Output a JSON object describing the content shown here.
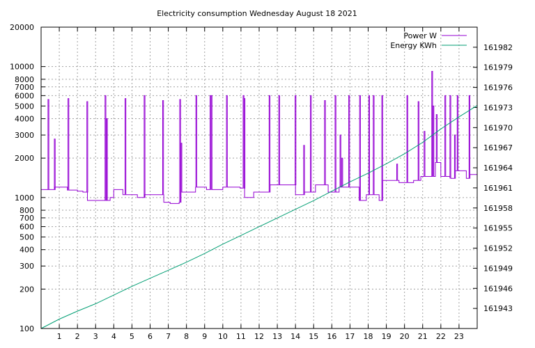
{
  "chart_data": {
    "type": "line",
    "title": "Electricity consumption Wednesday August 18 2021",
    "xlabel": "",
    "ylabel": "",
    "y2label": "",
    "grid": true,
    "legend_position": "top-right",
    "xlim": [
      0,
      24
    ],
    "x_ticks": [
      "1",
      "2",
      "3",
      "4",
      "5",
      "6",
      "7",
      "8",
      "9",
      "10",
      "11",
      "12",
      "13",
      "14",
      "15",
      "16",
      "17",
      "18",
      "19",
      "20",
      "21",
      "22",
      "23"
    ],
    "y_scale": "log",
    "ylim": [
      100,
      20000
    ],
    "y_ticks": [
      {
        "v": 100,
        "l": "100"
      },
      {
        "v": 200,
        "l": "200"
      },
      {
        "v": 300,
        "l": "300"
      },
      {
        "v": 400,
        "l": "400"
      },
      {
        "v": 500,
        "l": "500"
      },
      {
        "v": 600,
        "l": "600"
      },
      {
        "v": 700,
        "l": "700"
      },
      {
        "v": 800,
        "l": "800"
      },
      {
        "v": 1000,
        "l": "1000"
      },
      {
        "v": 2000,
        "l": "2000"
      },
      {
        "v": 3000,
        "l": "3000"
      },
      {
        "v": 4000,
        "l": "4000"
      },
      {
        "v": 5000,
        "l": "5000"
      },
      {
        "v": 6000,
        "l": "6000"
      },
      {
        "v": 7000,
        "l": "7000"
      },
      {
        "v": 8000,
        "l": "8000"
      },
      {
        "v": 10000,
        "l": "10000"
      },
      {
        "v": 20000,
        "l": "20000"
      }
    ],
    "y2lim": [
      161940,
      161985
    ],
    "y2_ticks": [
      161943,
      161946,
      161949,
      161952,
      161955,
      161958,
      161961,
      161964,
      161967,
      161970,
      161973,
      161976,
      161979,
      161982
    ],
    "series": [
      {
        "name": "Power W",
        "axis": "left",
        "color": "#9400d3",
        "base": [
          [
            0.0,
            1150
          ],
          [
            0.4,
            1150
          ],
          [
            0.75,
            1200
          ],
          [
            1.0,
            1200
          ],
          [
            1.45,
            1140
          ],
          [
            2.0,
            1120
          ],
          [
            2.3,
            1100
          ],
          [
            2.55,
            950
          ],
          [
            3.8,
            1000
          ],
          [
            4.0,
            1150
          ],
          [
            4.5,
            1050
          ],
          [
            5.3,
            1000
          ],
          [
            5.7,
            1050
          ],
          [
            6.5,
            1050
          ],
          [
            6.75,
            920
          ],
          [
            7.1,
            900
          ],
          [
            7.6,
            920
          ],
          [
            7.7,
            1100
          ],
          [
            8.3,
            1100
          ],
          [
            8.5,
            1200
          ],
          [
            9.1,
            1150
          ],
          [
            10.0,
            1200
          ],
          [
            10.5,
            1200
          ],
          [
            10.95,
            1180
          ],
          [
            11.2,
            1000
          ],
          [
            11.7,
            1100
          ],
          [
            12.6,
            1250
          ],
          [
            13.7,
            1250
          ],
          [
            14.0,
            1050
          ],
          [
            14.5,
            1100
          ],
          [
            15.1,
            1250
          ],
          [
            15.8,
            1100
          ],
          [
            16.4,
            1200
          ],
          [
            17.5,
            950
          ],
          [
            17.9,
            1050
          ],
          [
            18.6,
            950
          ],
          [
            18.8,
            1350
          ],
          [
            19.4,
            1350
          ],
          [
            19.7,
            1300
          ],
          [
            20.5,
            1350
          ],
          [
            20.9,
            1450
          ],
          [
            21.7,
            1850
          ],
          [
            22.0,
            1450
          ],
          [
            22.5,
            1400
          ],
          [
            22.8,
            1600
          ],
          [
            23.4,
            1400
          ],
          [
            23.6,
            1500
          ],
          [
            24.0,
            1500
          ]
        ],
        "spikes": [
          [
            0.38,
            5600
          ],
          [
            0.73,
            2800
          ],
          [
            1.48,
            5700
          ],
          [
            2.52,
            5400
          ],
          [
            3.52,
            6000
          ],
          [
            3.6,
            4000
          ],
          [
            4.62,
            5700
          ],
          [
            5.67,
            6000
          ],
          [
            6.69,
            5500
          ],
          [
            7.63,
            5600
          ],
          [
            7.7,
            2600
          ],
          [
            8.52,
            6000
          ],
          [
            9.3,
            6000
          ],
          [
            9.36,
            6000
          ],
          [
            10.2,
            6000
          ],
          [
            11.12,
            6000
          ],
          [
            11.17,
            5700
          ],
          [
            12.55,
            6000
          ],
          [
            13.08,
            6000
          ],
          [
            13.98,
            6000
          ],
          [
            14.45,
            2500
          ],
          [
            14.82,
            6000
          ],
          [
            15.6,
            5500
          ],
          [
            16.18,
            6000
          ],
          [
            16.45,
            3000
          ],
          [
            16.55,
            2000
          ],
          [
            16.93,
            6000
          ],
          [
            17.53,
            6000
          ],
          [
            18.03,
            6000
          ],
          [
            18.28,
            6000
          ],
          [
            18.75,
            6000
          ],
          [
            19.57,
            1800
          ],
          [
            20.13,
            6000
          ],
          [
            20.75,
            5400
          ],
          [
            21.08,
            3200
          ],
          [
            21.5,
            9200
          ],
          [
            21.57,
            5000
          ],
          [
            21.75,
            4300
          ],
          [
            22.22,
            6000
          ],
          [
            22.5,
            6000
          ],
          [
            22.75,
            3000
          ],
          [
            22.9,
            6000
          ],
          [
            23.55,
            6000
          ]
        ]
      },
      {
        "name": "Energy KWh",
        "axis": "right",
        "color": "#009e73",
        "points": [
          [
            0.0,
            161940.0
          ],
          [
            1.0,
            161941.4
          ],
          [
            2.0,
            161942.6
          ],
          [
            3.0,
            161943.7
          ],
          [
            4.0,
            161945.0
          ],
          [
            5.0,
            161946.3
          ],
          [
            6.0,
            161947.5
          ],
          [
            7.0,
            161948.7
          ],
          [
            8.0,
            161949.9
          ],
          [
            9.0,
            161951.2
          ],
          [
            10.0,
            161952.6
          ],
          [
            11.0,
            161953.9
          ],
          [
            12.0,
            161955.2
          ],
          [
            13.0,
            161956.5
          ],
          [
            14.0,
            161957.8
          ],
          [
            15.0,
            161959.1
          ],
          [
            16.0,
            161960.5
          ],
          [
            17.0,
            161961.9
          ],
          [
            18.0,
            161963.2
          ],
          [
            19.0,
            161964.6
          ],
          [
            20.0,
            161966.1
          ],
          [
            21.0,
            161967.8
          ],
          [
            22.0,
            161969.8
          ],
          [
            23.0,
            161971.6
          ],
          [
            24.0,
            161973.3
          ]
        ]
      }
    ]
  }
}
